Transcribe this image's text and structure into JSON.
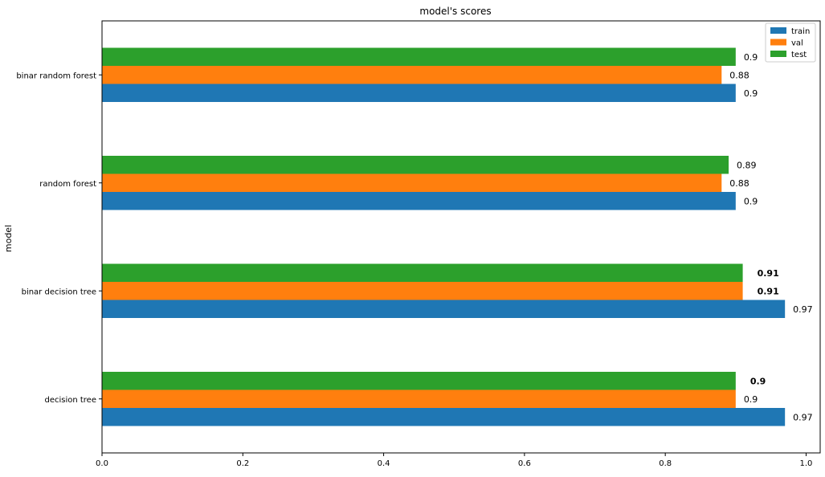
{
  "chart_data": {
    "type": "bar",
    "orientation": "horizontal",
    "title": "model's scores",
    "xlabel": "",
    "ylabel": "model",
    "xlim": [
      0,
      1.02
    ],
    "xticks": [
      0.0,
      0.2,
      0.4,
      0.6,
      0.8,
      1.0
    ],
    "xtick_labels": [
      "0.0",
      "0.2",
      "0.4",
      "0.6",
      "0.8",
      "1.0"
    ],
    "categories": [
      "decision tree",
      "binar decision tree",
      "random forest",
      "binar random forest"
    ],
    "series": [
      {
        "name": "train",
        "color": "#1f77b4",
        "values": [
          0.97,
          0.97,
          0.9,
          0.9
        ],
        "labels": [
          "0.97",
          "0.97",
          "0.9",
          "0.9"
        ],
        "bold": [
          false,
          false,
          false,
          false
        ]
      },
      {
        "name": "val",
        "color": "#ff7f0e",
        "values": [
          0.9,
          0.91,
          0.88,
          0.88
        ],
        "labels": [
          "0.9",
          "0.91",
          "0.88",
          "0.88"
        ],
        "bold": [
          false,
          true,
          false,
          false
        ]
      },
      {
        "name": "test",
        "color": "#2ca02c",
        "values": [
          0.9,
          0.91,
          0.89,
          0.9
        ],
        "labels": [
          "0.9",
          "0.91",
          "0.89",
          "0.9"
        ],
        "bold": [
          true,
          true,
          false,
          false
        ]
      }
    ],
    "grid": false,
    "legend": {
      "placement": "top-right",
      "entries": [
        "train",
        "val",
        "test"
      ]
    }
  }
}
